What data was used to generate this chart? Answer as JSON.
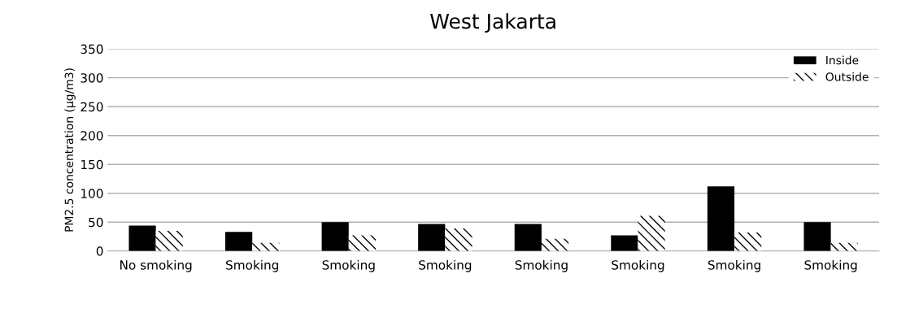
{
  "chart_data": {
    "type": "bar",
    "title": "West Jakarta",
    "ylabel": "PM2.5 concentration (µg/m3)",
    "categories": [
      "No smoking",
      "Smoking",
      "Smoking",
      "Smoking",
      "Smoking",
      "Smoking",
      "Smoking",
      "Smoking"
    ],
    "series": [
      {
        "name": "Inside",
        "color": "#000000",
        "values": [
          44,
          33,
          50,
          47,
          47,
          27,
          112,
          50
        ]
      },
      {
        "name": "Outside",
        "color": "#ffffff",
        "values": [
          35,
          14,
          27,
          39,
          21,
          61,
          32,
          14
        ]
      }
    ],
    "ylim": [
      0,
      350
    ],
    "yticks": [
      0,
      50,
      100,
      150,
      200,
      250,
      300,
      350
    ],
    "grid": "y",
    "legend": "top right"
  }
}
